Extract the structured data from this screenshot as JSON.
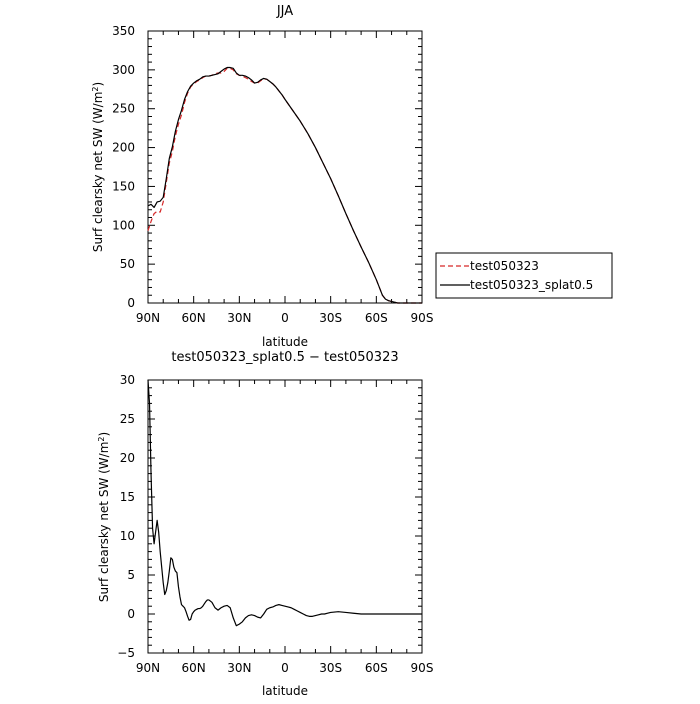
{
  "chart_data": [
    {
      "type": "line",
      "title": "JJA",
      "xlabel": "latitude",
      "ylabel": "Surf clearsky net SW (W/m²)",
      "ylabel_main": "Surf clearsky net SW (W/m",
      "ylabel_sup": "2",
      "ylabel_tail": ")",
      "xlim": [
        90,
        -90
      ],
      "ylim": [
        0,
        350
      ],
      "x_ticks": [
        90,
        60,
        30,
        0,
        -30,
        -60,
        -90
      ],
      "x_tick_labels": [
        "90N",
        "60N",
        "30N",
        "0",
        "30S",
        "60S",
        "90S"
      ],
      "y_ticks": [
        0,
        50,
        100,
        150,
        200,
        250,
        300,
        350
      ],
      "y_tick_labels": [
        "0",
        "50",
        "100",
        "150",
        "200",
        "250",
        "300",
        "350"
      ],
      "grid": false,
      "legend_position": "right",
      "series": [
        {
          "name": "test050323",
          "color": "#d62728",
          "dash": "dashed",
          "x": [
            90,
            88,
            86,
            84,
            82,
            80,
            78,
            76,
            74,
            72,
            70,
            68,
            66,
            64,
            62,
            60,
            58,
            56,
            54,
            52,
            50,
            48,
            46,
            44,
            42,
            40,
            38,
            36,
            34,
            32,
            30,
            28,
            26,
            24,
            22,
            20,
            18,
            16,
            14,
            12,
            10,
            8,
            6,
            4,
            2,
            0,
            -5,
            -10,
            -15,
            -20,
            -25,
            -30,
            -35,
            -40,
            -45,
            -50,
            -55,
            -60,
            -62,
            -64,
            -66,
            -68,
            -70,
            -72,
            -74,
            -76,
            -78,
            -80,
            -85,
            -90
          ],
          "values": [
            93,
            105,
            115,
            118,
            117,
            130,
            155,
            180,
            195,
            215,
            230,
            242,
            258,
            270,
            278,
            282,
            285,
            287,
            290,
            292,
            292,
            293,
            295,
            296,
            296,
            298,
            302,
            302,
            300,
            295,
            293,
            292,
            290,
            288,
            285,
            283,
            283,
            286,
            288,
            288,
            285,
            282,
            278,
            273,
            268,
            262,
            248,
            234,
            218,
            200,
            180,
            160,
            138,
            115,
            93,
            72,
            52,
            30,
            20,
            10,
            5,
            3,
            2,
            1,
            0,
            0,
            0,
            0,
            0,
            0
          ]
        },
        {
          "name": "test050323_splat0.5",
          "color": "#000000",
          "dash": "solid",
          "x": [
            90,
            88,
            86,
            84,
            82,
            80,
            78,
            76,
            74,
            72,
            70,
            68,
            66,
            64,
            62,
            60,
            58,
            56,
            54,
            52,
            50,
            48,
            46,
            44,
            42,
            40,
            38,
            36,
            34,
            32,
            30,
            28,
            26,
            24,
            22,
            20,
            18,
            16,
            14,
            12,
            10,
            8,
            6,
            4,
            2,
            0,
            -5,
            -10,
            -15,
            -20,
            -25,
            -30,
            -35,
            -40,
            -45,
            -50,
            -55,
            -60,
            -62,
            -64,
            -66,
            -68,
            -70,
            -72,
            -74,
            -76,
            -78,
            -80,
            -85,
            -90
          ],
          "values": [
            125,
            127,
            123,
            130,
            131,
            136,
            160,
            186,
            201,
            221,
            236,
            248,
            262,
            272,
            279,
            283,
            286,
            288,
            291,
            292,
            292,
            293,
            294,
            295,
            298,
            301,
            303,
            303,
            302,
            296,
            293,
            293,
            292,
            290,
            287,
            283,
            284,
            287,
            289,
            288,
            285,
            282,
            278,
            273,
            268,
            262,
            248,
            234,
            218,
            200,
            180,
            160,
            138,
            115,
            93,
            72,
            52,
            30,
            20,
            10,
            5,
            3,
            2,
            1,
            0,
            0,
            0,
            0,
            0,
            0
          ]
        }
      ]
    },
    {
      "type": "line",
      "title": "test050323_splat0.5 − test050323",
      "xlabel": "latitude",
      "ylabel": "Surf clearsky net SW (W/m²)",
      "ylabel_main": "Surf clearsky net SW (W/m",
      "ylabel_sup": "2",
      "ylabel_tail": ")",
      "xlim": [
        90,
        -90
      ],
      "ylim": [
        -5,
        30
      ],
      "x_ticks": [
        90,
        60,
        30,
        0,
        -30,
        -60,
        -90
      ],
      "x_tick_labels": [
        "90N",
        "60N",
        "30N",
        "0",
        "30S",
        "60S",
        "90S"
      ],
      "y_ticks": [
        -5,
        0,
        5,
        10,
        15,
        20,
        25,
        30
      ],
      "y_tick_labels": [
        "−5",
        "0",
        "5",
        "10",
        "15",
        "20",
        "25",
        "30"
      ],
      "grid": false,
      "series": [
        {
          "color": "#000000",
          "dash": "solid",
          "x": [
            90,
            89,
            88,
            87,
            86,
            85,
            84,
            83,
            82,
            81,
            80,
            79,
            78,
            77,
            76,
            75,
            74,
            73,
            72,
            71,
            70,
            69,
            68,
            67,
            66,
            65,
            64,
            63,
            62,
            61,
            60,
            59,
            58,
            57,
            56,
            55,
            54,
            53,
            52,
            51,
            50,
            48,
            46,
            44,
            42,
            40,
            38,
            36,
            34,
            32,
            30,
            28,
            26,
            24,
            22,
            20,
            18,
            16,
            14,
            12,
            10,
            8,
            6,
            4,
            2,
            0,
            -2,
            -4,
            -6,
            -8,
            -10,
            -12,
            -14,
            -16,
            -18,
            -20,
            -22,
            -24,
            -26,
            -28,
            -30,
            -35,
            -40,
            -45,
            -50,
            -55,
            -60,
            -65,
            -70,
            -75,
            -80,
            -85,
            -90
          ],
          "values": [
            30,
            27,
            18,
            11,
            9,
            10.5,
            12,
            10.5,
            8,
            6,
            4,
            2.5,
            3,
            4,
            5.5,
            7.2,
            7,
            6,
            5.5,
            5.3,
            3.5,
            2.2,
            1.2,
            1,
            0.8,
            0.3,
            -0.3,
            -0.8,
            -0.7,
            0,
            0.3,
            0.5,
            0.6,
            0.7,
            0.7,
            0.8,
            1,
            1.3,
            1.6,
            1.8,
            1.8,
            1.5,
            0.8,
            0.5,
            0.8,
            1,
            1.1,
            0.8,
            -0.5,
            -1.5,
            -1.3,
            -1,
            -0.5,
            -0.2,
            -0.1,
            -0.2,
            -0.4,
            -0.5,
            0,
            0.6,
            0.8,
            0.9,
            1.1,
            1.2,
            1.1,
            1,
            0.9,
            0.8,
            0.6,
            0.4,
            0.2,
            0,
            -0.2,
            -0.3,
            -0.3,
            -0.2,
            -0.1,
            0,
            0,
            0.1,
            0.2,
            0.3,
            0.2,
            0.1,
            0,
            0,
            0,
            0,
            0,
            0,
            0,
            0,
            0
          ]
        }
      ]
    }
  ]
}
